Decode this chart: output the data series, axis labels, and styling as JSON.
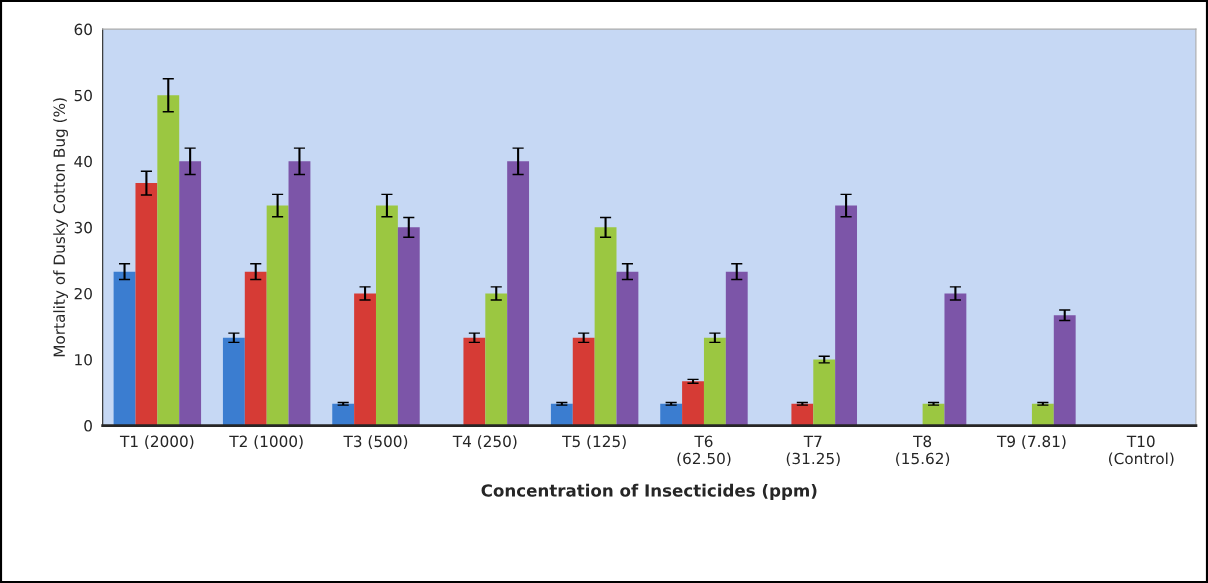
{
  "chart_data": {
    "type": "bar",
    "xlabel": "Concentration of Insecticides (ppm)",
    "ylabel": "Mortality of Dusky Cotton Bug (%)",
    "categories": [
      "T1 (2000)",
      "T2 (1000)",
      "T3 (500)",
      "T4 (250)",
      "T5 (125)",
      "T6\n(62.50)",
      "T7\n(31.25)",
      "T8\n(15.62)",
      "T9 (7.81)",
      "T10\n(Control)"
    ],
    "series": [
      {
        "color": "#3b7dd0",
        "values": [
          23.3,
          13.3,
          3.3,
          0,
          3.3,
          3.3,
          0,
          0,
          0,
          0
        ],
        "errors": [
          1.2,
          0.7,
          0.2,
          null,
          0.2,
          0.2,
          null,
          null,
          null,
          null
        ]
      },
      {
        "color": "#d63b35",
        "values": [
          36.7,
          23.3,
          20,
          13.3,
          13.3,
          6.7,
          3.3,
          0,
          0,
          0
        ],
        "errors": [
          1.8,
          1.2,
          1,
          0.7,
          0.7,
          0.3,
          0.2,
          null,
          null,
          null
        ]
      },
      {
        "color": "#9bc741",
        "values": [
          50,
          33.3,
          33.3,
          20,
          30,
          13.3,
          10,
          3.3,
          3.3,
          0
        ],
        "errors": [
          2.5,
          1.7,
          1.7,
          1,
          1.5,
          0.7,
          0.5,
          0.2,
          0.2,
          null
        ]
      },
      {
        "color": "#7c55a8",
        "values": [
          40,
          40,
          30,
          40,
          23.3,
          23.3,
          33.3,
          20,
          16.7,
          0
        ],
        "errors": [
          2,
          2,
          1.5,
          2,
          1.2,
          1.2,
          1.7,
          1,
          0.8,
          null
        ]
      }
    ],
    "ylim": [
      0,
      60
    ],
    "yticks": [
      0,
      10,
      20,
      30,
      40,
      50,
      60
    ],
    "grid": false,
    "legend": false
  }
}
